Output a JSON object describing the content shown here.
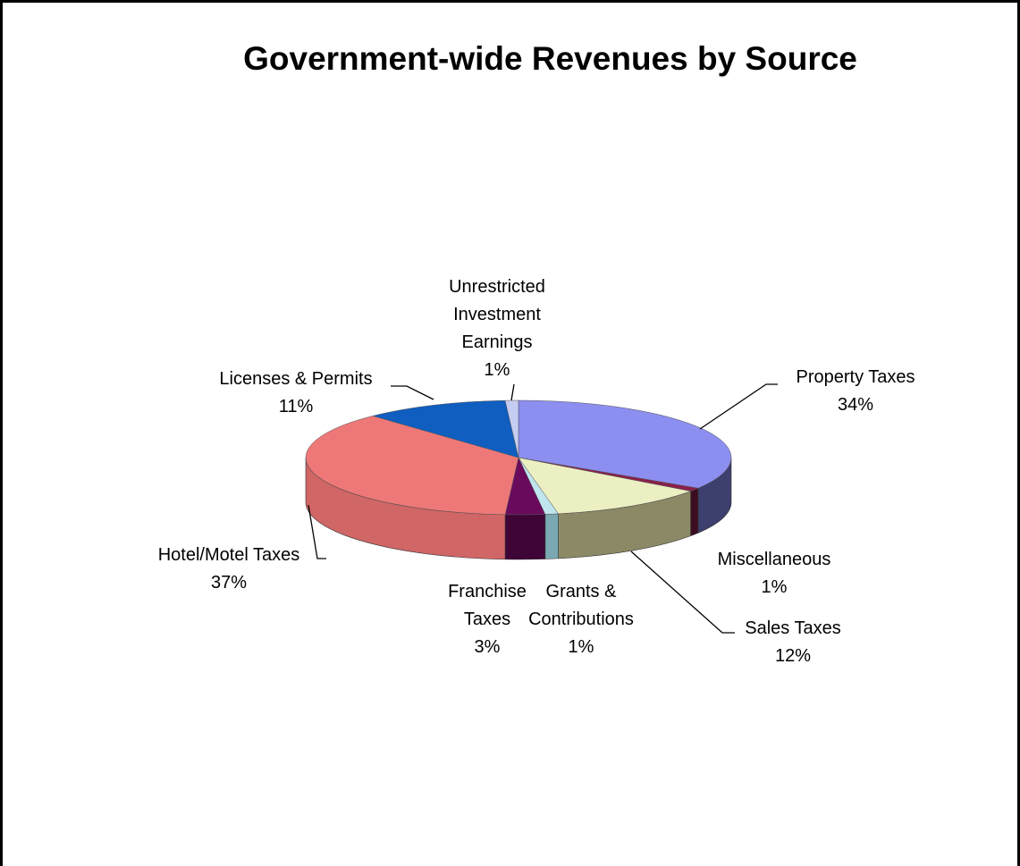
{
  "chart_data": {
    "type": "pie",
    "title": "Government-wide Revenues by Source",
    "slices": [
      {
        "label": "Property Taxes",
        "value": 34,
        "value_label": "34%",
        "color": "#8c8ef0",
        "side_color": "#3d3f6e"
      },
      {
        "label": "Miscellaneous",
        "value": 1,
        "value_label": "1%",
        "color": "#8a1f4a",
        "side_color": "#3c0c20"
      },
      {
        "label": "Sales Taxes",
        "value": 12,
        "value_label": "12%",
        "color": "#ecefc2",
        "side_color": "#8c8a66"
      },
      {
        "label": "Grants & Contributions",
        "value": 1,
        "value_label": "1%",
        "color": "#bfe5ee",
        "side_color": "#7aa8b2"
      },
      {
        "label": "Franchise Taxes",
        "value": 3,
        "value_label": "3%",
        "color": "#6a0a5c",
        "side_color": "#3e0536"
      },
      {
        "label": "Hotel/Motel Taxes",
        "value": 37,
        "value_label": "37%",
        "color": "#ee7878",
        "side_color": "#d06666"
      },
      {
        "label": "Licenses & Permits",
        "value": 11,
        "value_label": "11%",
        "color": "#0f5ec0",
        "side_color": "#0a3f82"
      },
      {
        "label": "Unrestricted Investment Earnings",
        "value": 1,
        "value_label": "1%",
        "color": "#c6cdf2",
        "side_color": "#8d95c0"
      }
    ],
    "legend": "none",
    "style": "3d-pie"
  }
}
